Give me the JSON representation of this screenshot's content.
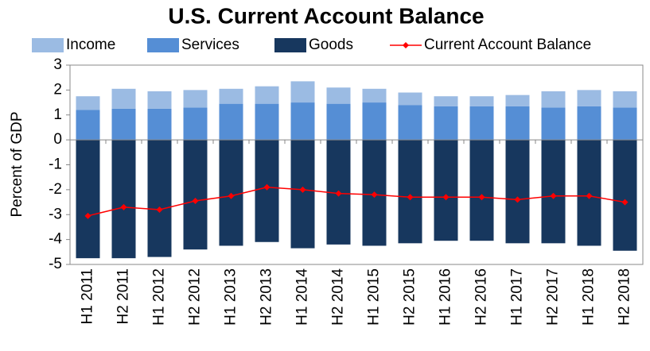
{
  "chart_data": {
    "type": "bar",
    "stacked": true,
    "title": "U.S. Current Account Balance",
    "y_label": "Percent of GDP",
    "categories": [
      "H1 2011",
      "H2 2011",
      "H1 2012",
      "H2 2012",
      "H1 2013",
      "H2 2013",
      "H1 2014",
      "H2 2014",
      "H1 2015",
      "H2 2015",
      "H1 2016",
      "H2 2016",
      "H1 2017",
      "H2 2017",
      "H1 2018",
      "H2 2018"
    ],
    "series": [
      {
        "name": "Income",
        "color": "#9bbbe3",
        "values": [
          0.55,
          0.8,
          0.7,
          0.7,
          0.6,
          0.7,
          0.85,
          0.65,
          0.55,
          0.5,
          0.4,
          0.4,
          0.45,
          0.65,
          0.65,
          0.65
        ]
      },
      {
        "name": "Services",
        "color": "#558ed5",
        "values": [
          1.2,
          1.25,
          1.25,
          1.3,
          1.45,
          1.45,
          1.5,
          1.45,
          1.5,
          1.4,
          1.35,
          1.35,
          1.35,
          1.3,
          1.35,
          1.3
        ]
      },
      {
        "name": "Goods",
        "color": "#17375e",
        "values": [
          -4.75,
          -4.75,
          -4.7,
          -4.4,
          -4.25,
          -4.1,
          -4.35,
          -4.2,
          -4.25,
          -4.15,
          -4.05,
          -4.05,
          -4.15,
          -4.15,
          -4.25,
          -4.45
        ]
      },
      {
        "name": "Current Account Balance",
        "type": "line",
        "color": "#ff0000",
        "values": [
          -3.05,
          -2.7,
          -2.8,
          -2.45,
          -2.25,
          -1.9,
          -2.0,
          -2.15,
          -2.2,
          -2.3,
          -2.3,
          -2.3,
          -2.4,
          -2.25,
          -2.25,
          -2.5
        ]
      }
    ],
    "ylim": [
      -5,
      3
    ],
    "yticks": [
      -5,
      -4,
      -3,
      -2,
      -1,
      0,
      1,
      2,
      3
    ],
    "grid": false
  }
}
